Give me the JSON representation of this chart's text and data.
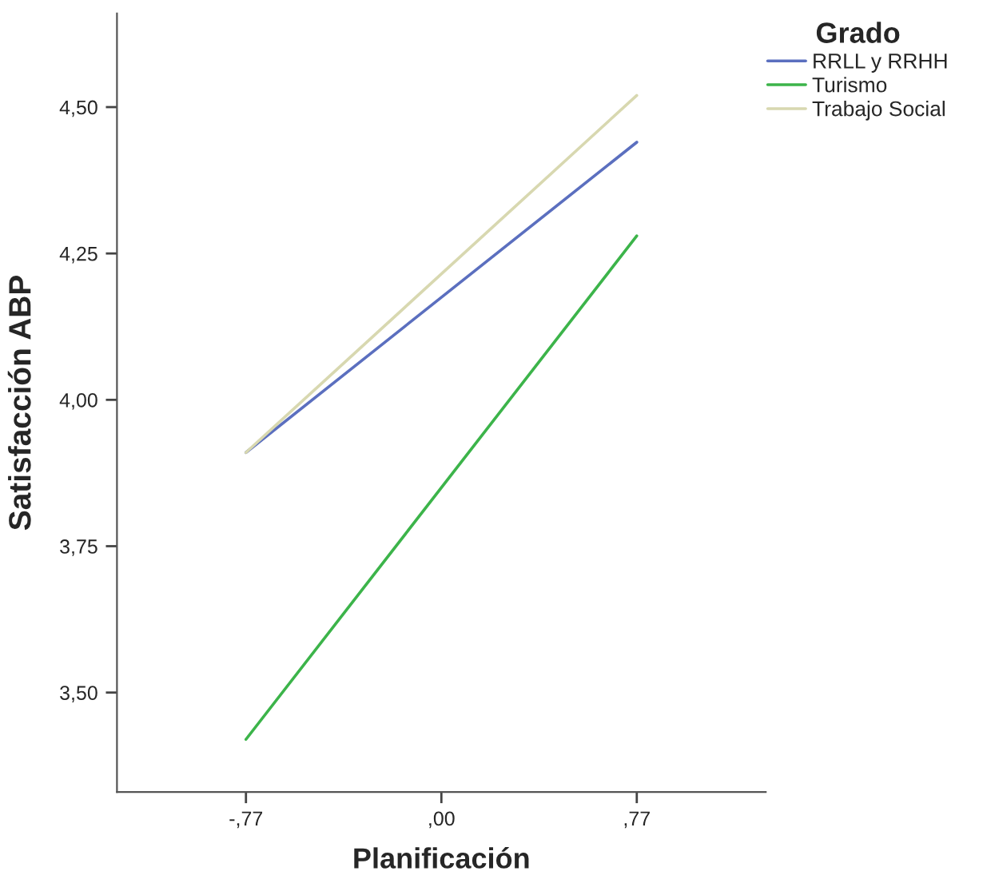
{
  "chart_data": {
    "type": "line",
    "xlabel": "Planificación",
    "ylabel": "Satisfacción ABP",
    "legend_title": "Grado",
    "legend": "top right",
    "grid": false,
    "categories": [
      "-,77",
      ",00",
      ",77"
    ],
    "series": [
      {
        "name": "RRLL y RRHH",
        "color": "#5b6fbf",
        "values": [
          3.91,
          null,
          4.44
        ]
      },
      {
        "name": "Turismo",
        "color": "#3cb44a",
        "values": [
          3.42,
          null,
          4.28
        ]
      },
      {
        "name": "Trabajo Social",
        "color": "#d8d8b0",
        "values": [
          3.91,
          null,
          4.52
        ]
      }
    ],
    "ylim": [
      3.33,
      4.66
    ],
    "yticks": [
      {
        "value": 3.5,
        "label": "3,50"
      },
      {
        "value": 3.75,
        "label": "3,75"
      },
      {
        "value": 4.0,
        "label": "4,00"
      },
      {
        "value": 4.25,
        "label": "4,25"
      },
      {
        "value": 4.5,
        "label": "4,50"
      }
    ]
  }
}
